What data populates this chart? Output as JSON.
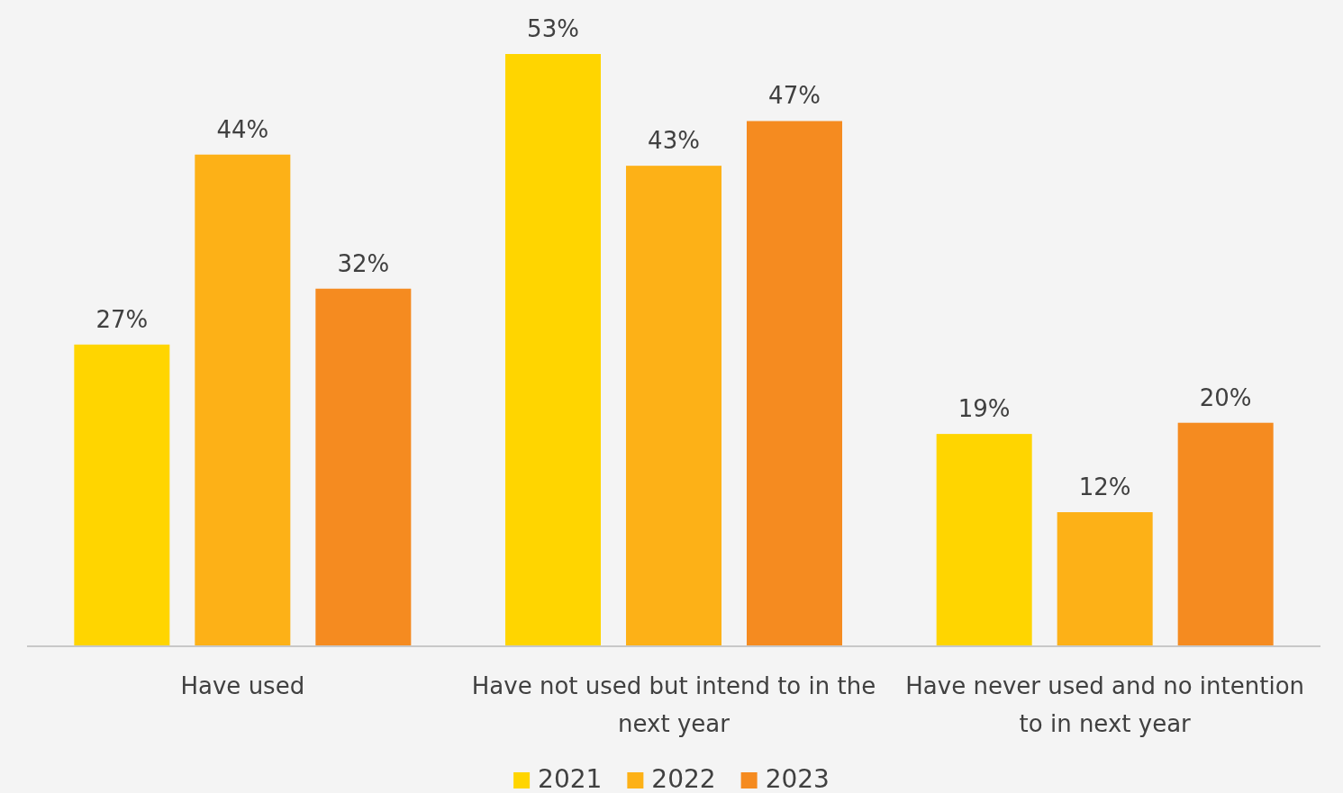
{
  "chart_data": {
    "type": "bar",
    "categories": [
      "Have used",
      "Have not used but intend to in the next year",
      "Have never used and no intention to in next year"
    ],
    "series": [
      {
        "name": "2021",
        "color": "#ffd500",
        "values": [
          27,
          53,
          19
        ],
        "value_labels": [
          "27%",
          "53%",
          "19%"
        ]
      },
      {
        "name": "2022",
        "color": "#fdb117",
        "values": [
          44,
          43,
          12
        ],
        "value_labels": [
          "44%",
          "43%",
          "12%"
        ]
      },
      {
        "name": "2023",
        "color": "#f58b20",
        "values": [
          32,
          47,
          20
        ],
        "value_labels": [
          "32%",
          "47%",
          "20%"
        ]
      }
    ],
    "legend": "bottom"
  }
}
